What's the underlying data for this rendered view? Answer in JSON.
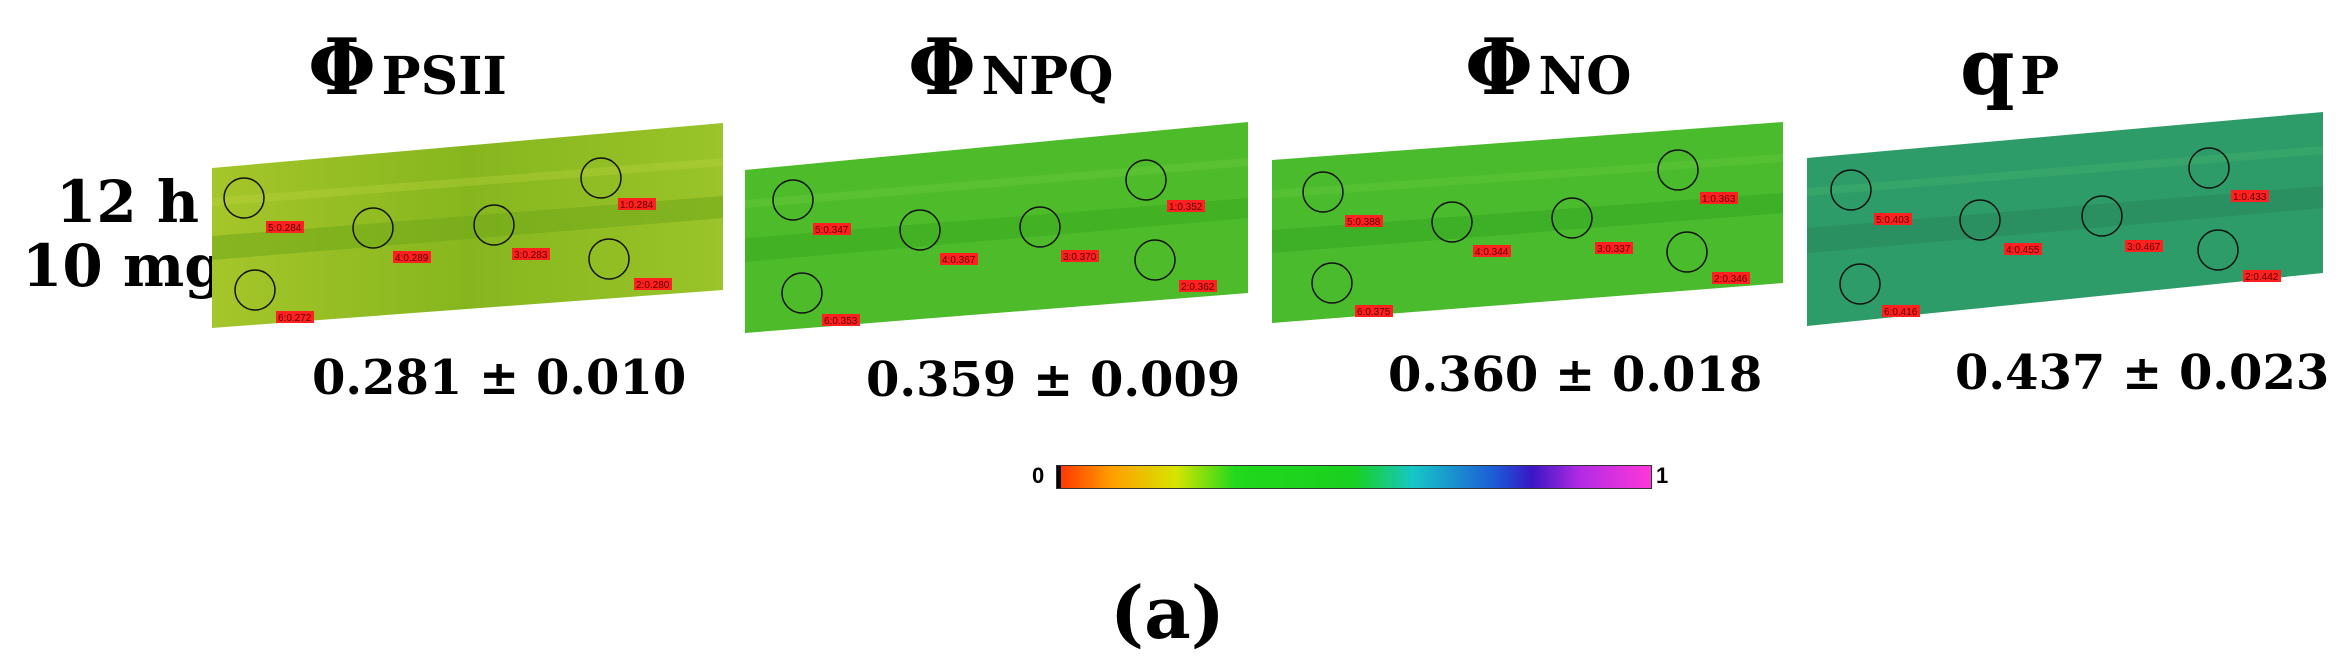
{
  "row_label": {
    "line1": "12 h",
    "line2": "10 mg"
  },
  "panels": [
    {
      "symbol": "Φ",
      "subscript": "PSII",
      "value": "0.281 ± 0.010",
      "roi_labels": [
        "1:0.284",
        "2:0.280",
        "3:0.283",
        "4:0.289",
        "5:0.284",
        "6:0.272"
      ],
      "leaf_color": "#8db81c"
    },
    {
      "symbol": "Φ",
      "subscript": "NPQ",
      "value": "0.359 ± 0.009",
      "roi_labels": [
        "1:0.352",
        "2:0.362",
        "3:0.370",
        "4:0.367",
        "5:0.347",
        "6:0.353"
      ],
      "leaf_color": "#4cbb2a"
    },
    {
      "symbol": "Φ",
      "subscript": "NO",
      "value": "0.360 ± 0.018",
      "roi_labels": [
        "1:0.363",
        "2:0.346",
        "3:0.337",
        "4:0.344",
        "5:0.388",
        "6:0.375"
      ],
      "leaf_color": "#48b82c"
    },
    {
      "symbol": "q",
      "subscript": "P",
      "value": "0.437 ± 0.023",
      "roi_labels": [
        "1:0.433",
        "2:0.442",
        "3:0.467",
        "4:0.455",
        "5:0.403",
        "6:0.416"
      ],
      "leaf_color": "#2c9a6a"
    }
  ],
  "colorbar": {
    "min_label": "0",
    "max_label": "1"
  },
  "panel_letter": "(a)"
}
